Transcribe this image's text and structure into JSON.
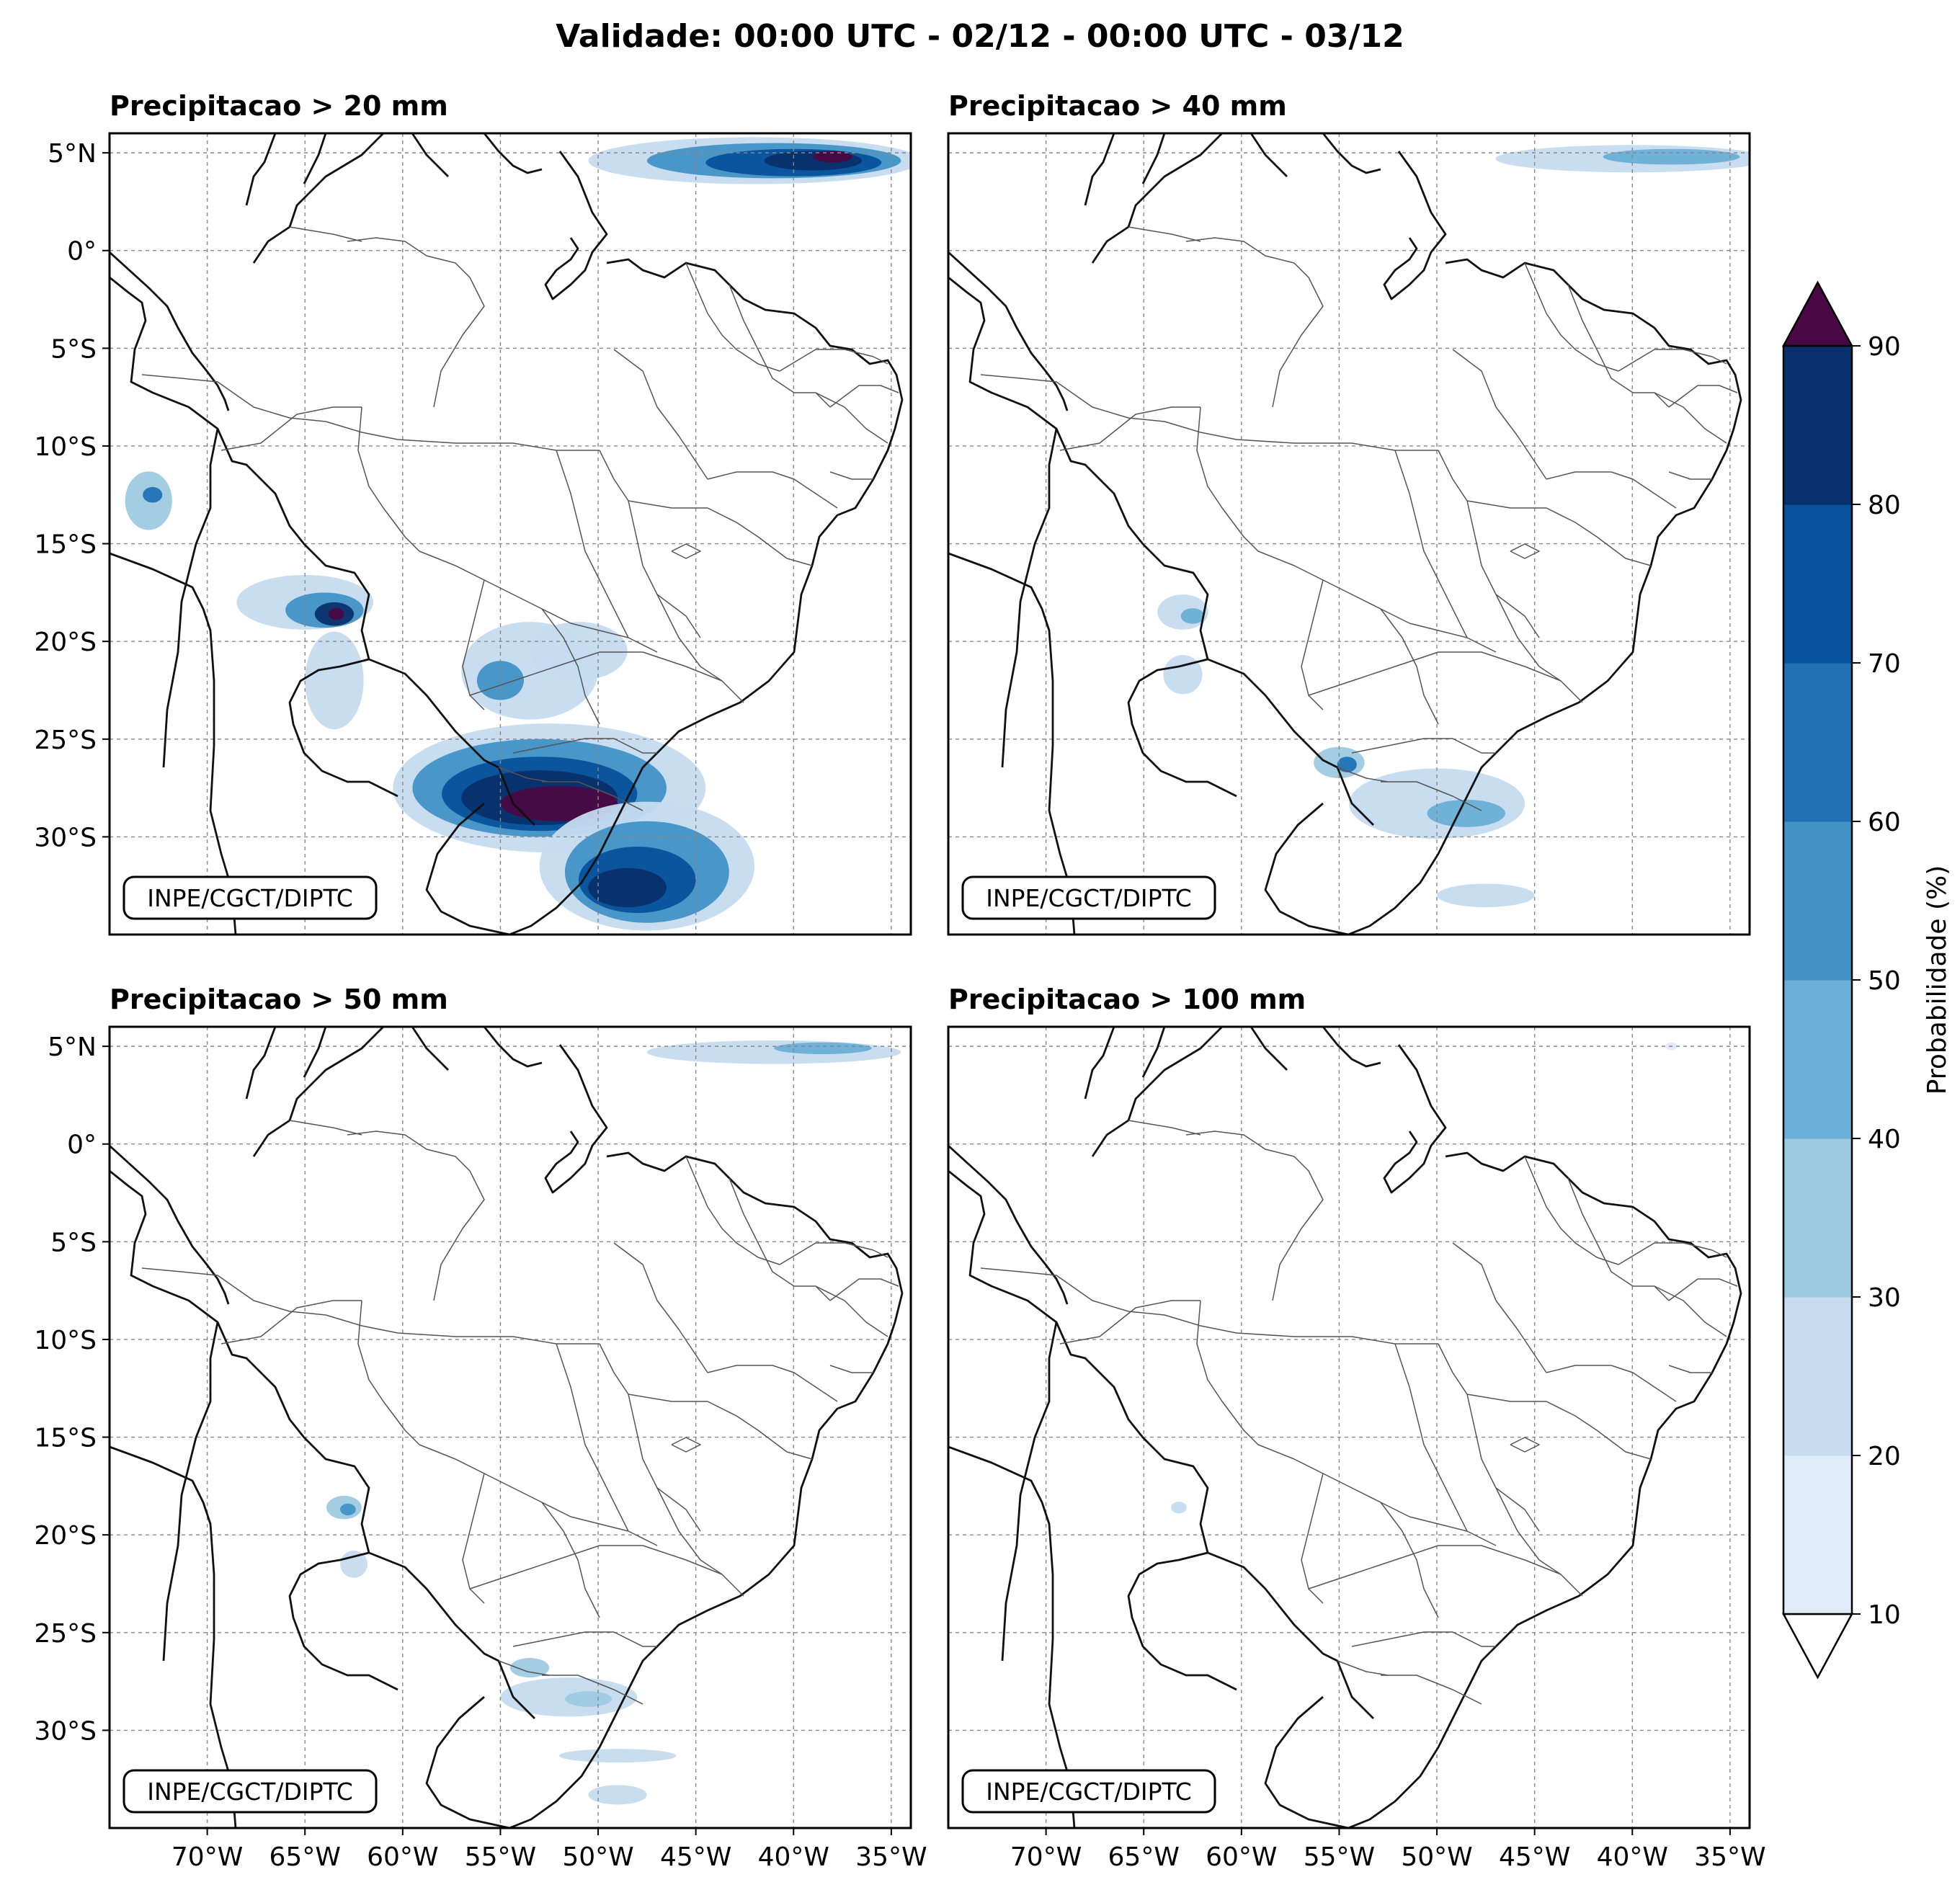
{
  "title": "Validade: 00:00 UTC - 02/12 - 00:00 UTC - 03/12",
  "credit": "INPE/CGCT/DIPTC",
  "map": {
    "lon_range": [
      -75,
      -34
    ],
    "lat_range": [
      -35,
      6
    ],
    "lon_ticks": [
      -70,
      -65,
      -60,
      -55,
      -50,
      -45,
      -40,
      -35
    ],
    "lat_ticks": [
      5,
      0,
      -5,
      -10,
      -15,
      -20,
      -25,
      -30
    ],
    "lon_tick_labels": [
      "70°W",
      "65°W",
      "60°W",
      "55°W",
      "50°W",
      "45°W",
      "40°W",
      "35°W"
    ],
    "lat_tick_labels": [
      "5°N",
      "0°",
      "5°S",
      "10°S",
      "15°S",
      "20°S",
      "25°S",
      "30°S"
    ],
    "grid": true,
    "coastline_color": "#111111",
    "border_color": "#555555"
  },
  "panels": [
    {
      "title": "Precipitacao > 20 mm",
      "areas": [
        {
          "lon": -42,
          "lat": 4.6,
          "rlon": 8.5,
          "rlat": 1.2,
          "p": 20
        },
        {
          "lon": -41,
          "lat": 4.6,
          "rlon": 6.5,
          "rlat": 0.9,
          "p": 50
        },
        {
          "lon": -40,
          "lat": 4.5,
          "rlon": 4.5,
          "rlat": 0.7,
          "p": 70
        },
        {
          "lon": -39,
          "lat": 4.6,
          "rlon": 2.5,
          "rlat": 0.5,
          "p": 85
        },
        {
          "lon": -38,
          "lat": 4.8,
          "rlon": 1.0,
          "rlat": 0.3,
          "p": 95
        },
        {
          "lon": -73,
          "lat": -12.8,
          "rlon": 1.2,
          "rlat": 1.5,
          "p": 30
        },
        {
          "lon": -72.8,
          "lat": -12.5,
          "rlon": 0.5,
          "rlat": 0.4,
          "p": 60
        },
        {
          "lon": -65,
          "lat": -18,
          "rlon": 3.5,
          "rlat": 1.4,
          "p": 20
        },
        {
          "lon": -64,
          "lat": -18.4,
          "rlon": 2.0,
          "rlat": 0.9,
          "p": 50
        },
        {
          "lon": -63.5,
          "lat": -18.6,
          "rlon": 1.0,
          "rlat": 0.6,
          "p": 80
        },
        {
          "lon": -63.4,
          "lat": -18.6,
          "rlon": 0.4,
          "rlat": 0.3,
          "p": 95
        },
        {
          "lon": -63.5,
          "lat": -22,
          "rlon": 1.5,
          "rlat": 2.5,
          "p": 20
        },
        {
          "lon": -53.5,
          "lat": -21.5,
          "rlon": 3.5,
          "rlat": 2.5,
          "p": 20
        },
        {
          "lon": -55,
          "lat": -22,
          "rlon": 1.2,
          "rlat": 1.0,
          "p": 50
        },
        {
          "lon": -51,
          "lat": -20.5,
          "rlon": 2.5,
          "rlat": 1.5,
          "p": 20
        },
        {
          "lon": -52.5,
          "lat": -27.5,
          "rlon": 8.0,
          "rlat": 3.3,
          "p": 20
        },
        {
          "lon": -53,
          "lat": -27.5,
          "rlon": 6.5,
          "rlat": 2.5,
          "p": 50
        },
        {
          "lon": -53,
          "lat": -27.8,
          "rlon": 5.0,
          "rlat": 1.9,
          "p": 70
        },
        {
          "lon": -53,
          "lat": -28.0,
          "rlon": 4.0,
          "rlat": 1.4,
          "p": 85
        },
        {
          "lon": -52,
          "lat": -28.3,
          "rlon": 3.0,
          "rlat": 0.9,
          "p": 95
        },
        {
          "lon": -47.5,
          "lat": -31.5,
          "rlon": 5.5,
          "rlat": 3.3,
          "p": 20
        },
        {
          "lon": -47.5,
          "lat": -31.8,
          "rlon": 4.2,
          "rlat": 2.6,
          "p": 50
        },
        {
          "lon": -48,
          "lat": -32.2,
          "rlon": 3.0,
          "rlat": 1.7,
          "p": 70
        },
        {
          "lon": -48.5,
          "lat": -32.6,
          "rlon": 2.0,
          "rlat": 1.0,
          "p": 85
        }
      ]
    },
    {
      "title": "Precipitacao > 40 mm",
      "areas": [
        {
          "lon": -40,
          "lat": 4.7,
          "rlon": 7.0,
          "rlat": 0.7,
          "p": 20
        },
        {
          "lon": -38,
          "lat": 4.8,
          "rlon": 3.5,
          "rlat": 0.4,
          "p": 45
        },
        {
          "lon": -63,
          "lat": -18.5,
          "rlon": 1.3,
          "rlat": 0.9,
          "p": 25
        },
        {
          "lon": -62.5,
          "lat": -18.7,
          "rlon": 0.6,
          "rlat": 0.4,
          "p": 45
        },
        {
          "lon": -63,
          "lat": -21.7,
          "rlon": 1.0,
          "rlat": 1.0,
          "p": 20
        },
        {
          "lon": -55,
          "lat": -26.2,
          "rlon": 1.3,
          "rlat": 0.8,
          "p": 30
        },
        {
          "lon": -54.6,
          "lat": -26.3,
          "rlon": 0.5,
          "rlat": 0.4,
          "p": 60
        },
        {
          "lon": -50,
          "lat": -28.3,
          "rlon": 4.5,
          "rlat": 1.8,
          "p": 20
        },
        {
          "lon": -48.5,
          "lat": -28.8,
          "rlon": 2.0,
          "rlat": 0.7,
          "p": 45
        },
        {
          "lon": -47.5,
          "lat": -33.0,
          "rlon": 2.5,
          "rlat": 0.6,
          "p": 20
        }
      ]
    },
    {
      "title": "Precipitacao > 50 mm",
      "areas": [
        {
          "lon": -41,
          "lat": 4.7,
          "rlon": 6.5,
          "rlat": 0.6,
          "p": 20
        },
        {
          "lon": -38.5,
          "lat": 4.9,
          "rlon": 2.5,
          "rlat": 0.3,
          "p": 45
        },
        {
          "lon": -63,
          "lat": -18.6,
          "rlon": 0.9,
          "rlat": 0.6,
          "p": 30
        },
        {
          "lon": -62.8,
          "lat": -18.7,
          "rlon": 0.4,
          "rlat": 0.3,
          "p": 55
        },
        {
          "lon": -62.5,
          "lat": -21.5,
          "rlon": 0.7,
          "rlat": 0.7,
          "p": 20
        },
        {
          "lon": -53.5,
          "lat": -26.8,
          "rlon": 1.0,
          "rlat": 0.5,
          "p": 30
        },
        {
          "lon": -51.5,
          "lat": -28.3,
          "rlon": 3.5,
          "rlat": 1.0,
          "p": 20
        },
        {
          "lon": -50.5,
          "lat": -28.4,
          "rlon": 1.2,
          "rlat": 0.4,
          "p": 35
        },
        {
          "lon": -49,
          "lat": -31.3,
          "rlon": 3.0,
          "rlat": 0.35,
          "p": 20
        },
        {
          "lon": -49,
          "lat": -33.3,
          "rlon": 1.5,
          "rlat": 0.5,
          "p": 20
        }
      ]
    },
    {
      "title": "Precipitacao > 100 mm",
      "areas": [
        {
          "lon": -63.2,
          "lat": -18.6,
          "rlon": 0.4,
          "rlat": 0.3,
          "p": 20
        },
        {
          "lon": -38,
          "lat": 5.0,
          "rlon": 0.3,
          "rlat": 0.2,
          "p": 15
        }
      ]
    }
  ],
  "colorbar": {
    "label": "Probabilidade (%)",
    "levels": [
      10,
      20,
      30,
      40,
      50,
      60,
      70,
      80,
      90
    ],
    "tick_labels": [
      "10",
      "20",
      "30",
      "40",
      "50",
      "60",
      "70",
      "80",
      "90"
    ],
    "colors": [
      "#dfebf7",
      "#c6dbef",
      "#9ecae1",
      "#6baed6",
      "#4292c6",
      "#2171b5",
      "#08519c",
      "#08306b"
    ],
    "under_color": "#ffffff",
    "over_color": "#4a0845",
    "extend": "both"
  }
}
